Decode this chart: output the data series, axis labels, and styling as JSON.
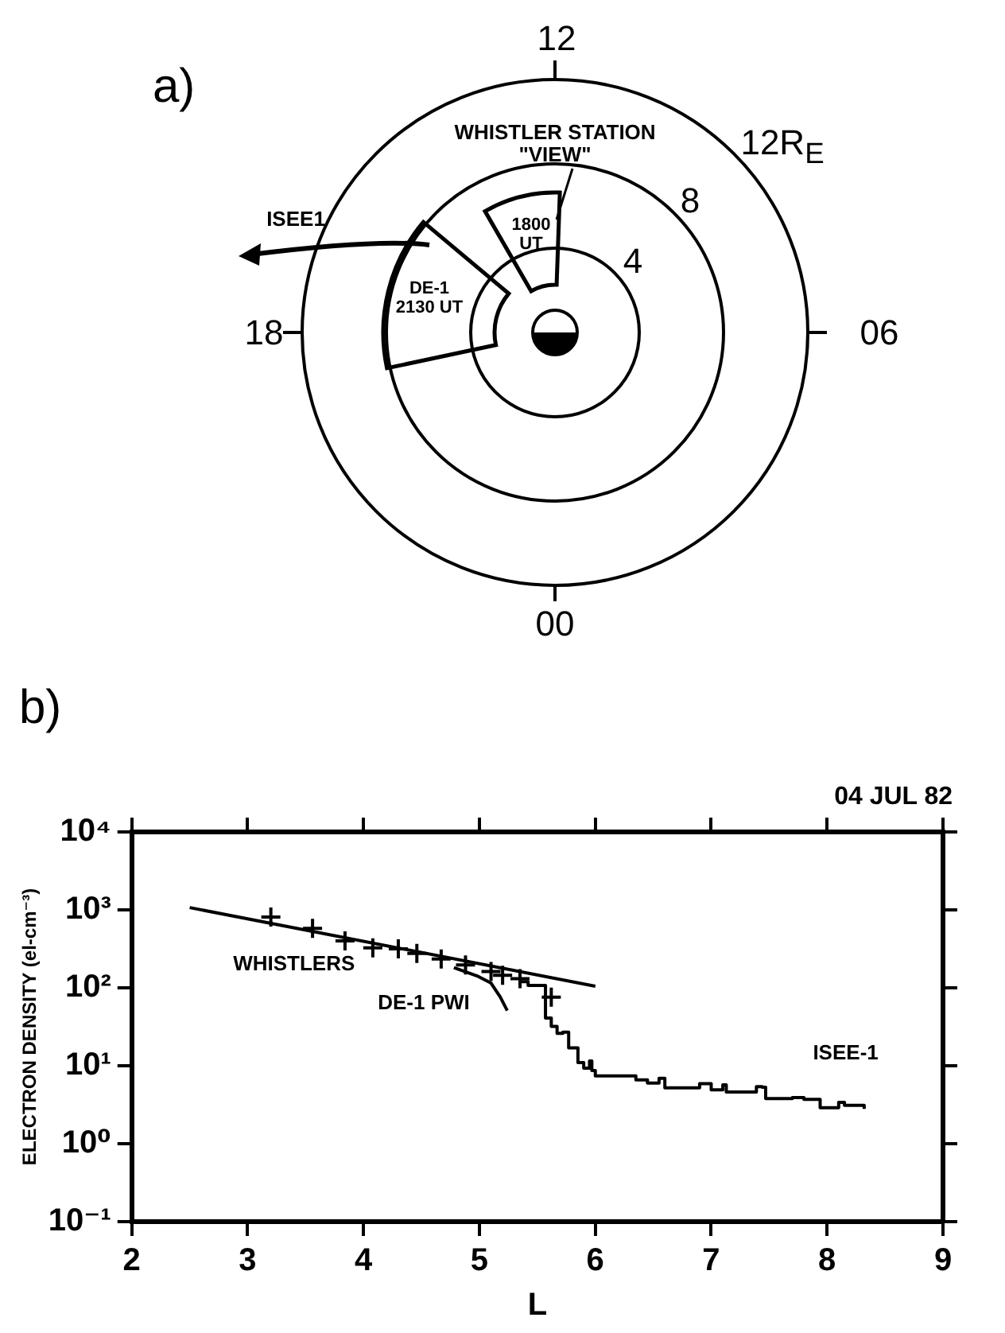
{
  "chart_data": [
    {
      "type": "other",
      "title": "a)",
      "annotations": [
        "12",
        "06",
        "00",
        "18",
        "4",
        "8",
        "12R$_{E}$",
        "WHISTLER STATION \"VIEW\"",
        "1800 UT",
        "DE-1 2130 UT",
        "ISEE1"
      ]
    },
    {
      "type": "line",
      "title": "b)",
      "xlabel": "L",
      "ylabel": "ELECTRON DENSITY (el-cm⁻³)",
      "annotations": [
        "04 JUL 82",
        "WHISTLERS",
        "DE-1 PWI",
        "ISEE-1"
      ],
      "xlim": [
        2,
        9
      ],
      "xticks": [
        2,
        3,
        4,
        5,
        6,
        7,
        8,
        9
      ],
      "ylim": [
        0.1,
        10000
      ],
      "yticks": [
        {
          "value": 0.1,
          "label": "10⁻¹"
        },
        {
          "value": 1,
          "label": "10⁰"
        },
        {
          "value": 10,
          "label": "10¹"
        },
        {
          "value": 100,
          "label": "10²"
        },
        {
          "value": 1000,
          "label": "10³"
        },
        {
          "value": 10000,
          "label": "10⁴"
        }
      ],
      "log": "y",
      "grid": false,
      "series": [
        {
          "type": "line",
          "color": "#000000",
          "marker": "none",
          "x": [
            2.5,
            6.0
          ],
          "values": [
            1070,
            105
          ]
        },
        {
          "type": "scatter",
          "color": "#000000",
          "marker": "cross",
          "x": [
            3.2,
            3.56,
            3.84,
            4.08,
            4.3,
            4.46,
            4.67,
            4.88,
            5.1,
            5.2,
            5.35,
            5.62
          ],
          "values": [
            810,
            580,
            400,
            325,
            316,
            277,
            234,
            196,
            162,
            145,
            131,
            76
          ]
        },
        {
          "type": "line",
          "color": "#000000",
          "marker": "none",
          "x": [
            4.78,
            4.99,
            5.1,
            5.18,
            5.24
          ],
          "values": [
            182,
            140,
            115,
            76,
            51
          ]
        },
        {
          "type": "step",
          "color": "#000000",
          "marker": "none",
          "x": [
            5.35,
            5.42,
            5.52,
            5.57,
            5.62,
            5.67,
            5.72,
            5.77,
            5.85,
            5.9,
            5.95,
            5.97,
            6.0,
            6.35,
            6.45,
            6.55,
            6.6,
            6.9,
            7.0,
            7.1,
            7.13,
            7.37,
            7.39,
            7.44,
            7.47,
            7.7,
            7.8,
            7.94,
            8.1,
            8.15,
            8.32
          ],
          "values": [
            120,
            107,
            107,
            41,
            32,
            26,
            27,
            17,
            11,
            9.3,
            11.5,
            8.7,
            7.4,
            6.6,
            6.0,
            6.9,
            5.2,
            5.9,
            4.9,
            5.7,
            4.6,
            4.6,
            5.4,
            5.3,
            3.8,
            3.9,
            3.7,
            2.9,
            3.4,
            3.1,
            2.8
          ]
        }
      ]
    }
  ]
}
